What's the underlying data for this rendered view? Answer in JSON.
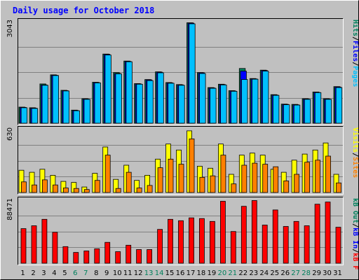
{
  "title": "Daily usage for October 2018",
  "colors": {
    "background": "#c0c0c0",
    "panel": "#c0c0c0",
    "frame_light": "#ffffff",
    "frame_dark": "#606060",
    "title": "#0000ff",
    "grid": "#808080",
    "hits": "#00805c",
    "files": "#0000ff",
    "pages": "#00c0ff",
    "visits": "#ffff00",
    "sites": "#ff8000",
    "kbin": "#0000ff",
    "kbout": "#00805c",
    "kbf": "#ff0000",
    "day_normal": "#000000",
    "day_weekend": "#00805c"
  },
  "chart_data": [
    {
      "type": "bar",
      "panel": "hits-files-pages",
      "ymax_label": "3043",
      "ylim": [
        0,
        3043
      ],
      "legend": [
        {
          "text": "Pages",
          "color": "#00c0ff"
        },
        {
          "text": "/",
          "color": "#000000"
        },
        {
          "text": "Files",
          "color": "#0000ff"
        },
        {
          "text": "/",
          "color": "#000000"
        },
        {
          "text": "Hits",
          "color": "#00805c"
        }
      ],
      "categories": [
        "1",
        "2",
        "3",
        "4",
        "5",
        "6",
        "7",
        "8",
        "9",
        "10",
        "11",
        "12",
        "13",
        "14",
        "15",
        "16",
        "17",
        "18",
        "19",
        "20",
        "21",
        "22",
        "23",
        "24",
        "25",
        "26",
        "27",
        "28",
        "29",
        "30",
        "31"
      ],
      "series": [
        {
          "name": "Hits",
          "color": "#00805c",
          "values": [
            480,
            460,
            1170,
            1440,
            980,
            390,
            730,
            1220,
            2060,
            1510,
            1850,
            1180,
            1300,
            1530,
            1210,
            1150,
            2990,
            1510,
            1060,
            1160,
            970,
            1630,
            1330,
            1580,
            850,
            570,
            560,
            730,
            930,
            730,
            1090
          ]
        },
        {
          "name": "Files",
          "color": "#0000ff",
          "values": [
            470,
            450,
            1140,
            1430,
            970,
            380,
            720,
            1210,
            2050,
            1480,
            1840,
            1170,
            1290,
            1520,
            1200,
            1140,
            2980,
            1500,
            1050,
            1150,
            960,
            1550,
            1320,
            1570,
            840,
            560,
            550,
            720,
            920,
            720,
            1080
          ]
        },
        {
          "name": "Pages",
          "color": "#00c0ff",
          "values": [
            460,
            440,
            1130,
            1420,
            960,
            370,
            710,
            1200,
            2030,
            1470,
            1830,
            1160,
            1270,
            1500,
            1190,
            1130,
            2960,
            1480,
            1040,
            1140,
            950,
            1300,
            1310,
            1550,
            830,
            550,
            540,
            710,
            910,
            710,
            1060
          ]
        }
      ]
    },
    {
      "type": "bar",
      "panel": "visits-sites",
      "ymax_label": "630",
      "ylim": [
        0,
        630
      ],
      "legend": [
        {
          "text": "Sites",
          "color": "#ff8000"
        },
        {
          "text": "/",
          "color": "#000000"
        },
        {
          "text": "Visits",
          "color": "#ffff00"
        }
      ],
      "categories": [
        "1",
        "2",
        "3",
        "4",
        "5",
        "6",
        "7",
        "8",
        "9",
        "10",
        "11",
        "12",
        "13",
        "14",
        "15",
        "16",
        "17",
        "18",
        "19",
        "20",
        "21",
        "22",
        "23",
        "24",
        "25",
        "26",
        "27",
        "28",
        "29",
        "30",
        "31"
      ],
      "series": [
        {
          "name": "Visits",
          "color": "#ffff00",
          "values": [
            220,
            200,
            230,
            170,
            110,
            100,
            55,
            190,
            450,
            130,
            270,
            120,
            170,
            330,
            480,
            420,
            610,
            260,
            240,
            480,
            180,
            370,
            390,
            370,
            230,
            200,
            320,
            380,
            420,
            490,
            180
          ]
        },
        {
          "name": "Sites",
          "color": "#ff8000",
          "values": [
            105,
            75,
            125,
            75,
            45,
            40,
            30,
            120,
            370,
            40,
            200,
            45,
            70,
            245,
            330,
            280,
            530,
            150,
            165,
            370,
            85,
            270,
            290,
            280,
            255,
            115,
            180,
            300,
            320,
            360,
            95
          ]
        }
      ]
    },
    {
      "type": "bar",
      "panel": "kbytes",
      "ymax_label": "88471",
      "ylim": [
        0,
        88471
      ],
      "legend": [
        {
          "text": "kB F",
          "color": "#ff0000"
        },
        {
          "text": "/",
          "color": "#000000"
        },
        {
          "text": "kB In",
          "color": "#0000ff"
        },
        {
          "text": "/",
          "color": "#000000"
        },
        {
          "text": "kB Out",
          "color": "#00805c"
        }
      ],
      "categories": [
        "1",
        "2",
        "3",
        "4",
        "5",
        "6",
        "7",
        "8",
        "9",
        "10",
        "11",
        "12",
        "13",
        "14",
        "15",
        "16",
        "17",
        "18",
        "19",
        "20",
        "21",
        "22",
        "23",
        "24",
        "25",
        "26",
        "27",
        "28",
        "29",
        "30",
        "31"
      ],
      "series": [
        {
          "name": "kB F",
          "color": "#ff0000",
          "values": [
            48000,
            52000,
            61000,
            43000,
            23000,
            15000,
            17000,
            20000,
            29000,
            16000,
            25000,
            19000,
            19000,
            47000,
            61000,
            59000,
            63000,
            62000,
            58000,
            86000,
            44000,
            79000,
            87000,
            53000,
            74000,
            51000,
            58000,
            52000,
            82000,
            85000,
            50000
          ]
        }
      ]
    }
  ],
  "weekend_days": [
    "6",
    "7",
    "13",
    "14",
    "20",
    "21",
    "27",
    "28"
  ]
}
